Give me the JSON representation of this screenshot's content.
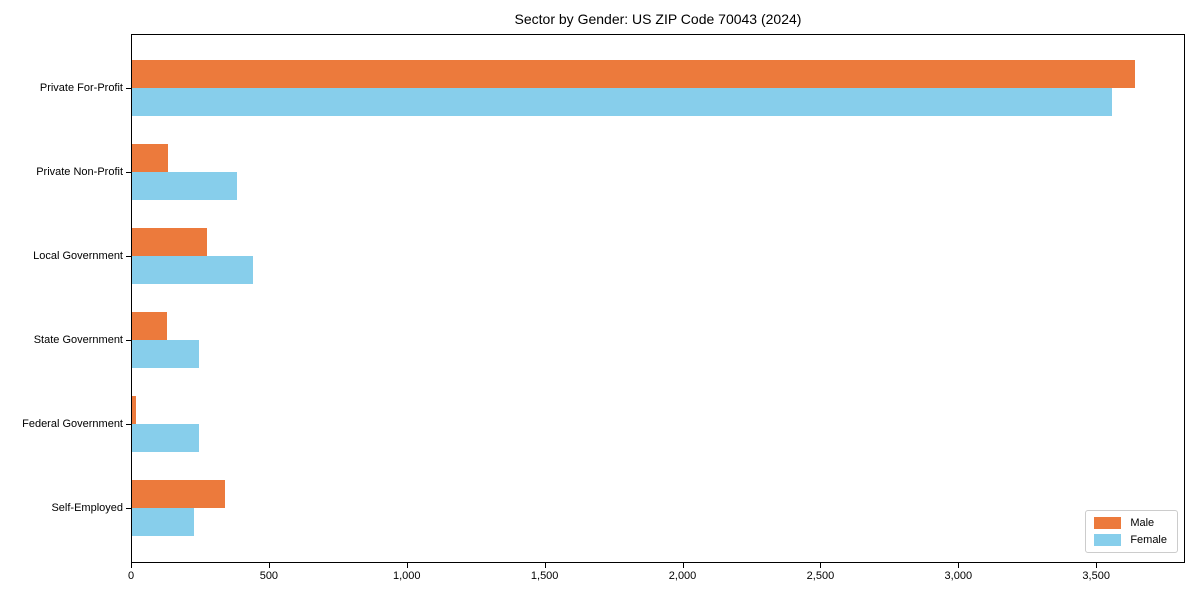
{
  "chart_data": {
    "type": "bar",
    "orientation": "horizontal",
    "title": "Sector by Gender: US ZIP Code 70043 (2024)",
    "categories": [
      "Private For-Profit",
      "Private Non-Profit",
      "Local Government",
      "State Government",
      "Federal Government",
      "Self-Employed"
    ],
    "series": [
      {
        "name": "Male",
        "color": "#ec7a3c",
        "values": [
          3640,
          133,
          274,
          129,
          18,
          341
        ]
      },
      {
        "name": "Female",
        "color": "#87ceeb",
        "values": [
          3558,
          385,
          441,
          247,
          247,
          229
        ]
      }
    ],
    "xlabel": "",
    "ylabel": "",
    "xlim": [
      0,
      3822
    ],
    "xticks": [
      0,
      500,
      1000,
      1500,
      2000,
      2500,
      3000,
      3500
    ],
    "xtick_labels": [
      "0",
      "500",
      "1,000",
      "1,500",
      "2,000",
      "2,500",
      "3,000",
      "3,500"
    ],
    "grid": false,
    "legend_position": "lower right",
    "axis_color": "#000000",
    "background_color": "#ffffff"
  }
}
